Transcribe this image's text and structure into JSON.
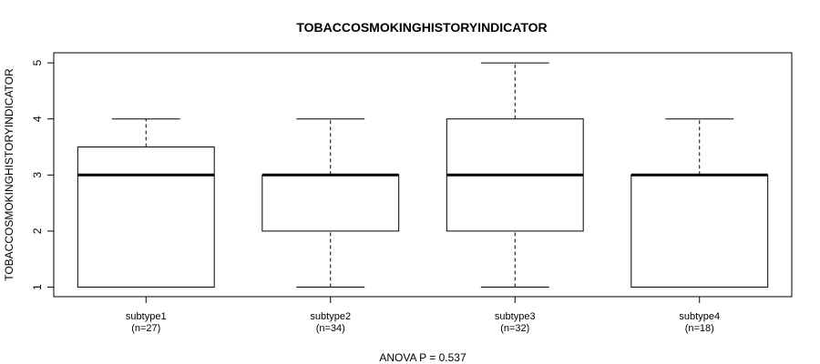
{
  "chart_data": {
    "type": "box",
    "title": "TOBACCOSMOKINGHISTORYINDICATOR",
    "ylabel": "TOBACCOSMOKINGHISTORYINDICATOR",
    "xlabel": "",
    "ylim": [
      0.83,
      5.18
    ],
    "yticks": [
      1,
      2,
      3,
      4,
      5
    ],
    "footer": "ANOVA P = 0.537",
    "categories": [
      "subtype1",
      "subtype2",
      "subtype3",
      "subtype4"
    ],
    "counts": [
      "(n=27)",
      "(n=34)",
      "(n=32)",
      "(n=18)"
    ],
    "boxes": [
      {
        "min": 1,
        "q1": 1,
        "median": 3,
        "q3": 3.5,
        "max": 4
      },
      {
        "min": 1,
        "q1": 2,
        "median": 3,
        "q3": 3,
        "max": 4
      },
      {
        "min": 1,
        "q1": 2,
        "median": 3,
        "q3": 4,
        "max": 5
      },
      {
        "min": 1,
        "q1": 1,
        "median": 3,
        "q3": 3,
        "max": 4
      }
    ]
  }
}
